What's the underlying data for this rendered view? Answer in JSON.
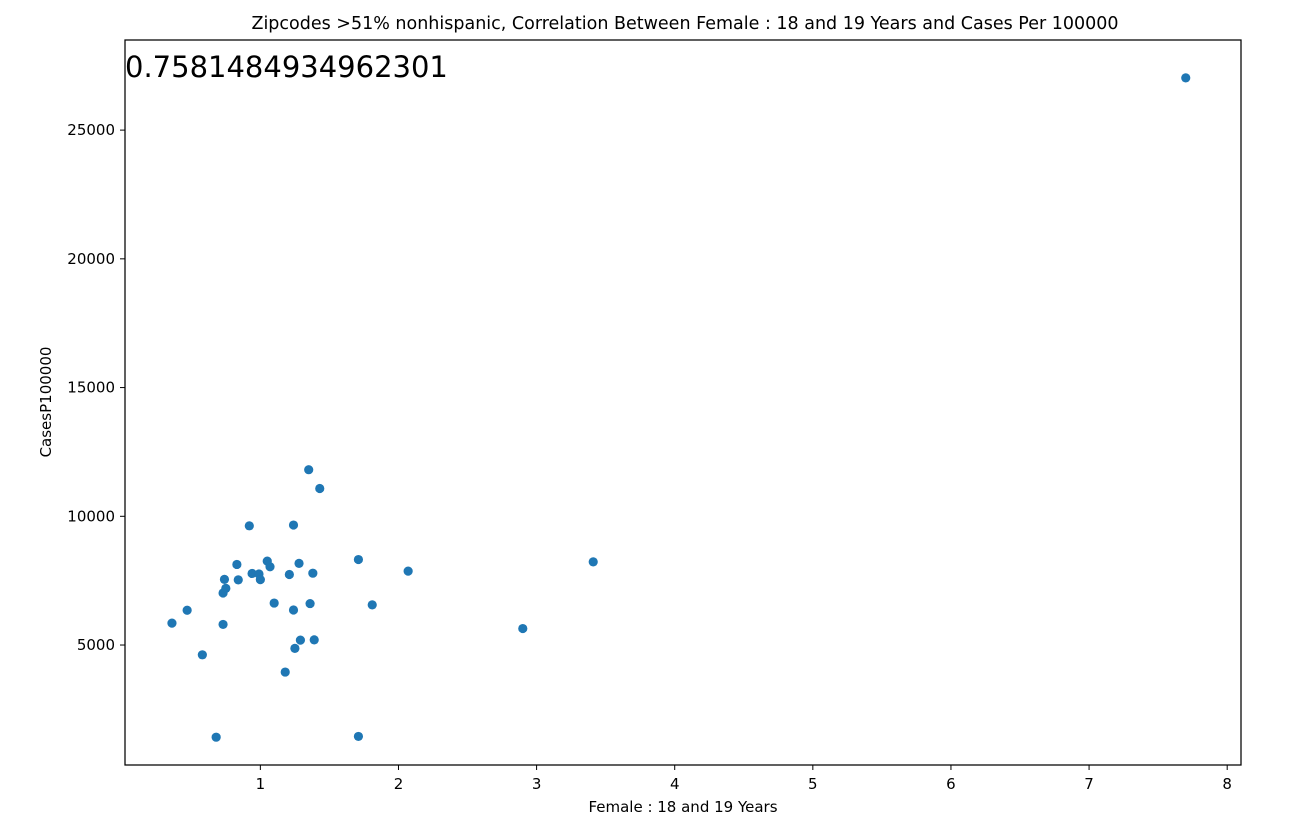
{
  "chart_data": {
    "type": "scatter",
    "title": "Zipcodes >51% nonhispanic, Correlation Between Female : 18 and 19 Years and Cases Per 100000",
    "annotation": "0.7581484934962301",
    "xlabel": "Female : 18 and 19 Years",
    "ylabel": "CasesP100000",
    "xlim": [
      0.02,
      8.1
    ],
    "ylim": [
      340,
      28500
    ],
    "xticks": [
      1,
      2,
      3,
      4,
      5,
      6,
      7,
      8
    ],
    "xtick_labels": [
      "1",
      "2",
      "3",
      "4",
      "5",
      "6",
      "7",
      "8"
    ],
    "yticks": [
      5000,
      10000,
      15000,
      20000,
      25000
    ],
    "ytick_labels": [
      "5000",
      "10000",
      "15000",
      "20000",
      "25000"
    ],
    "grid": false,
    "marker_color": "#1f77b4",
    "points": [
      {
        "x": 0.36,
        "y": 5850
      },
      {
        "x": 0.47,
        "y": 6350
      },
      {
        "x": 0.58,
        "y": 4620
      },
      {
        "x": 0.68,
        "y": 1420
      },
      {
        "x": 0.73,
        "y": 7020
      },
      {
        "x": 0.73,
        "y": 5800
      },
      {
        "x": 0.74,
        "y": 7550
      },
      {
        "x": 0.75,
        "y": 7200
      },
      {
        "x": 0.83,
        "y": 8130
      },
      {
        "x": 0.84,
        "y": 7530
      },
      {
        "x": 0.92,
        "y": 9630
      },
      {
        "x": 0.94,
        "y": 7780
      },
      {
        "x": 0.99,
        "y": 7760
      },
      {
        "x": 1.0,
        "y": 7540
      },
      {
        "x": 1.05,
        "y": 8260
      },
      {
        "x": 1.07,
        "y": 8040
      },
      {
        "x": 1.1,
        "y": 6630
      },
      {
        "x": 1.18,
        "y": 3950
      },
      {
        "x": 1.21,
        "y": 7740
      },
      {
        "x": 1.24,
        "y": 6360
      },
      {
        "x": 1.24,
        "y": 9660
      },
      {
        "x": 1.25,
        "y": 4870
      },
      {
        "x": 1.28,
        "y": 8170
      },
      {
        "x": 1.29,
        "y": 5190
      },
      {
        "x": 1.35,
        "y": 11810
      },
      {
        "x": 1.36,
        "y": 6610
      },
      {
        "x": 1.38,
        "y": 7790
      },
      {
        "x": 1.39,
        "y": 5200
      },
      {
        "x": 1.43,
        "y": 11080
      },
      {
        "x": 1.71,
        "y": 8320
      },
      {
        "x": 1.71,
        "y": 1450
      },
      {
        "x": 1.81,
        "y": 6560
      },
      {
        "x": 2.07,
        "y": 7870
      },
      {
        "x": 2.9,
        "y": 5640
      },
      {
        "x": 3.41,
        "y": 8230
      },
      {
        "x": 7.7,
        "y": 27030
      }
    ]
  }
}
